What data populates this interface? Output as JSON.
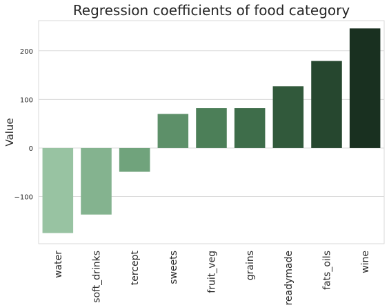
{
  "chart_data": {
    "type": "bar",
    "title": "Regression coefficients of food category",
    "xlabel": "",
    "ylabel": "Value",
    "categories": [
      "water",
      "soft_drinks",
      "tercept",
      "sweets",
      "fruit_veg",
      "grains",
      "readymade",
      "fats_oils",
      "wine"
    ],
    "values": [
      -175,
      -137,
      -49,
      70,
      82,
      82,
      127,
      179,
      246
    ],
    "ylim": [
      -197,
      262
    ],
    "yticks": [
      -100,
      0,
      100,
      200
    ],
    "grid": "horizontal",
    "palette": "sequential green, light to dark",
    "colors": [
      "#98c3a2",
      "#84b38f",
      "#70a37c",
      "#5d9069",
      "#4c7f58",
      "#3e6d4a",
      "#31593b",
      "#26472f",
      "#193020"
    ]
  }
}
